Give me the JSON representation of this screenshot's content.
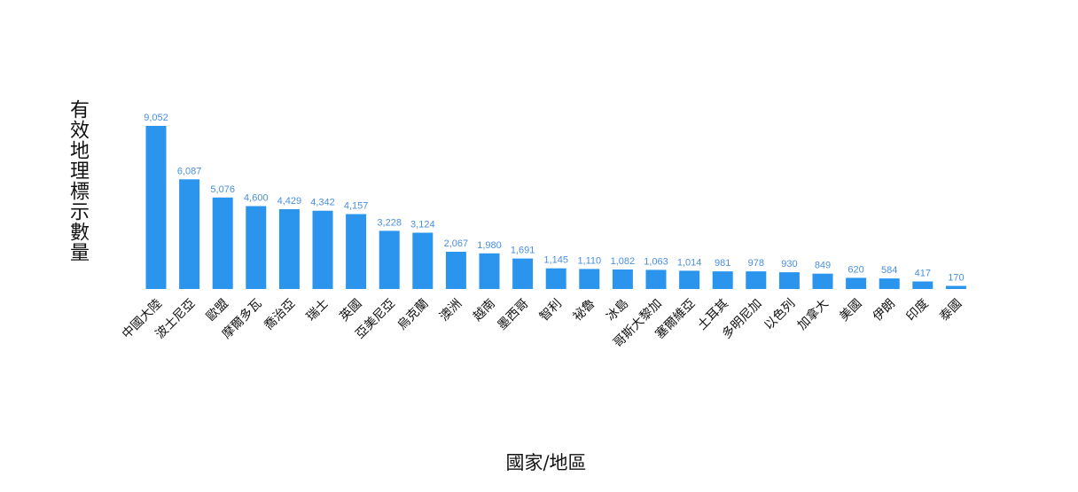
{
  "chart_data": {
    "type": "bar",
    "title": "",
    "xlabel": "國家/地區",
    "ylabel": "有效地理標示數量",
    "ylim": [
      0,
      9052
    ],
    "bar_color": "#2b95ee",
    "value_label_color": "#4a8fe0",
    "grid": false,
    "legend": "none",
    "categories": [
      "中國大陸",
      "波士尼亞",
      "歐盟",
      "摩爾多瓦",
      "喬治亞",
      "瑞士",
      "英國",
      "亞美尼亞",
      "烏克蘭",
      "澳洲",
      "越南",
      "墨西哥",
      "智利",
      "祕魯",
      "冰島",
      "哥斯大黎加",
      "塞爾維亞",
      "土耳其",
      "多明尼加",
      "以色列",
      "加拿大",
      "美國",
      "伊朗",
      "印度",
      "泰國"
    ],
    "values": [
      9052,
      6087,
      5076,
      4600,
      4429,
      4342,
      4157,
      3228,
      3124,
      2067,
      1980,
      1691,
      1145,
      1110,
      1082,
      1063,
      1014,
      981,
      978,
      930,
      849,
      620,
      584,
      417,
      170
    ],
    "value_labels": [
      "9,052",
      "6,087",
      "5,076",
      "4,600",
      "4,429",
      "4,342",
      "4,157",
      "3,228",
      "3,124",
      "2,067",
      "1,980",
      "1,691",
      "1,145",
      "1,110",
      "1,082",
      "1,063",
      "1,014",
      "981",
      "978",
      "930",
      "849",
      "620",
      "584",
      "417",
      "170"
    ]
  }
}
